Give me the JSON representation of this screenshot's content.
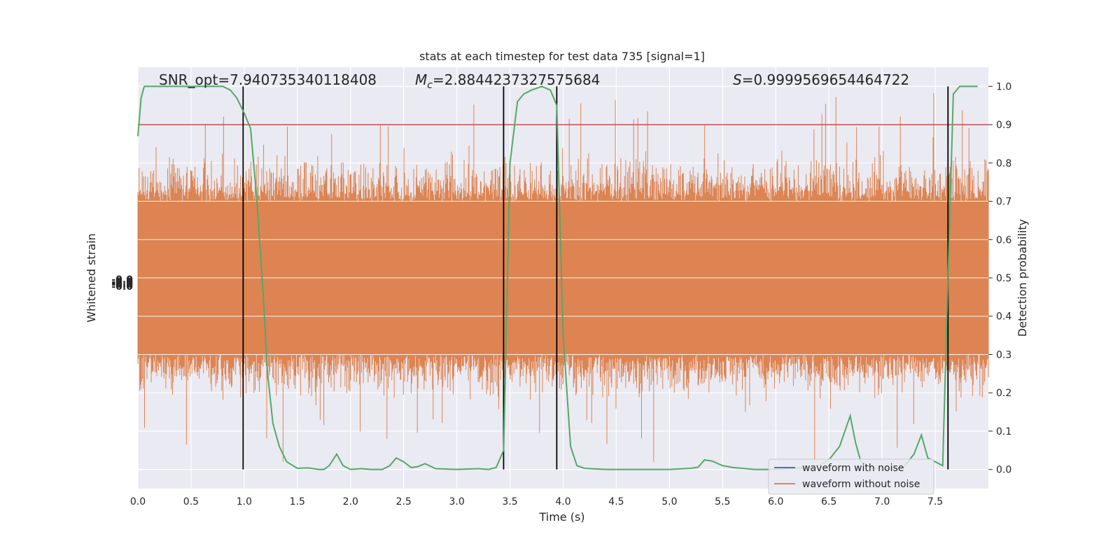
{
  "chart_data": {
    "type": "line",
    "title": "stats at each timestep for test data 735 [signal=1]",
    "xlabel": "Time (s)",
    "ylabel_left": "Whitened strain",
    "ylabel_right": "Detection probability",
    "xlim": [
      0.0,
      8.0
    ],
    "ylim_right": [
      -0.05,
      1.05
    ],
    "x_ticks": [
      "0.0",
      "0.5",
      "1.0",
      "1.5",
      "2.0",
      "2.5",
      "3.0",
      "3.5",
      "4.0",
      "4.5",
      "5.0",
      "5.5",
      "6.0",
      "6.5",
      "7.0",
      "7.5"
    ],
    "y_right_ticks": [
      "0.0",
      "0.1",
      "0.2",
      "0.3",
      "0.4",
      "0.5",
      "0.6",
      "0.7",
      "0.8",
      "0.9",
      "1.0"
    ],
    "y_left_ticks_note": "-0.0",
    "grid": true,
    "annotations": {
      "snr": "SNR_opt=7.940735340118408",
      "mc_symbol": "M",
      "mc_sub": "c",
      "mc_value": "=2.8844237327575684",
      "s_symbol": "S",
      "s_value": "=0.9999569654464722"
    },
    "threshold": 0.9,
    "vertical_lines_x": [
      0.99,
      3.44,
      3.94,
      7.62
    ],
    "legend": {
      "placement": "lower-right",
      "entries": [
        {
          "label": "waveform with noise",
          "color": "#4c72b0"
        },
        {
          "label": "waveform without noise",
          "color": "#dd8452"
        }
      ]
    },
    "series": [
      {
        "name": "waveform without noise",
        "color": "#dd8452",
        "kind": "dense-noise",
        "band_inner": [
          0.3,
          0.7
        ],
        "spike_max": 1.0,
        "spike_min": 0.02
      },
      {
        "name": "detection probability",
        "color": "#55a868",
        "x": [
          0.0,
          0.03,
          0.06,
          0.1,
          0.2,
          0.4,
          0.6,
          0.8,
          0.87,
          0.93,
          1.0,
          1.06,
          1.12,
          1.18,
          1.22,
          1.27,
          1.33,
          1.4,
          1.5,
          1.6,
          1.7,
          1.75,
          1.8,
          1.87,
          1.93,
          2.0,
          2.1,
          2.2,
          2.3,
          2.37,
          2.43,
          2.5,
          2.57,
          2.63,
          2.7,
          2.8,
          3.0,
          3.2,
          3.3,
          3.37,
          3.44,
          3.5,
          3.57,
          3.63,
          3.7,
          3.8,
          3.88,
          3.94,
          4.0,
          4.07,
          4.13,
          4.2,
          4.4,
          4.6,
          4.8,
          5.0,
          5.2,
          5.27,
          5.33,
          5.4,
          5.5,
          5.6,
          5.8,
          6.0,
          6.2,
          6.4,
          6.5,
          6.6,
          6.65,
          6.7,
          6.75,
          6.8,
          6.9,
          7.0,
          7.2,
          7.3,
          7.37,
          7.43,
          7.5,
          7.57,
          7.62,
          7.67,
          7.73,
          7.8,
          7.9
        ],
        "y": [
          0.87,
          0.97,
          1.0,
          1.0,
          1.0,
          1.0,
          1.0,
          1.0,
          0.99,
          0.97,
          0.93,
          0.89,
          0.7,
          0.45,
          0.25,
          0.12,
          0.06,
          0.02,
          0.003,
          0.004,
          0.0,
          0.0,
          0.01,
          0.04,
          0.01,
          0.0,
          0.002,
          0.0,
          0.0,
          0.01,
          0.03,
          0.02,
          0.005,
          0.007,
          0.015,
          0.002,
          0.0,
          0.002,
          0.0,
          0.005,
          0.05,
          0.8,
          0.96,
          0.98,
          0.99,
          1.0,
          0.99,
          0.95,
          0.35,
          0.06,
          0.01,
          0.003,
          0.0,
          0.0,
          0.0,
          0.0,
          0.003,
          0.006,
          0.025,
          0.022,
          0.01,
          0.005,
          0.0,
          0.0,
          0.003,
          0.01,
          0.025,
          0.06,
          0.1,
          0.14,
          0.07,
          0.02,
          0.005,
          0.0,
          0.005,
          0.04,
          0.09,
          0.03,
          0.02,
          0.01,
          0.5,
          0.98,
          1.0,
          1.0,
          1.0
        ]
      }
    ]
  }
}
